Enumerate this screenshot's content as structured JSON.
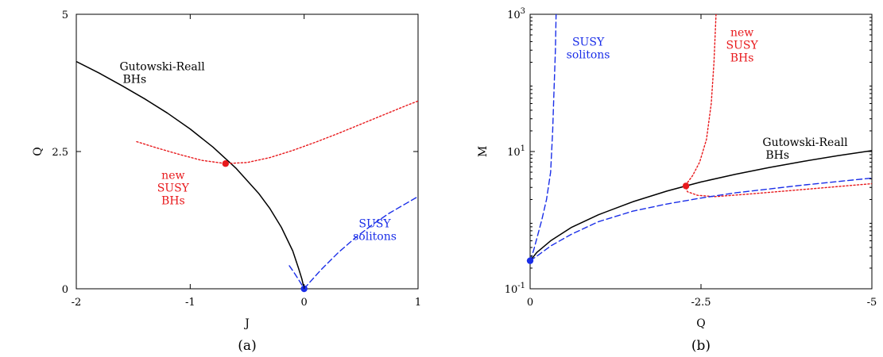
{
  "colors": {
    "black": "#000000",
    "red": "#e8191c",
    "blue": "#1a2ee8"
  },
  "chart_data": [
    {
      "type": "line",
      "caption": "(a)",
      "xlabel": "J",
      "ylabel": "Q",
      "xlim": [
        -2,
        1
      ],
      "ylim": [
        0,
        5
      ],
      "xticks": [
        -2,
        -1,
        0,
        1
      ],
      "xtick_labels": [
        "-2",
        "-1",
        "0",
        "1"
      ],
      "yticks": [
        0,
        2.5,
        5
      ],
      "ytick_labels": [
        "0",
        "2.5",
        "5"
      ],
      "grid": false,
      "series": [
        {
          "id": "gr",
          "color": "#000000",
          "style": "solid",
          "x": [
            -2.0,
            -1.8,
            -1.6,
            -1.4,
            -1.2,
            -1.0,
            -0.8,
            -0.6,
            -0.4,
            -0.3,
            -0.2,
            -0.1,
            -0.05,
            -0.02,
            0.0
          ],
          "y": [
            4.14,
            3.93,
            3.7,
            3.46,
            3.2,
            2.91,
            2.58,
            2.2,
            1.74,
            1.46,
            1.12,
            0.69,
            0.38,
            0.18,
            0.0
          ]
        },
        {
          "id": "new_susy",
          "color": "#e8191c",
          "style": "dotted",
          "x": [
            -1.47,
            -1.3,
            -1.1,
            -0.9,
            -0.69,
            -0.5,
            -0.3,
            -0.1,
            0.1,
            0.3,
            0.5,
            0.7,
            0.9,
            1.0
          ],
          "y": [
            2.68,
            2.57,
            2.45,
            2.34,
            2.28,
            2.3,
            2.39,
            2.52,
            2.67,
            2.83,
            3.0,
            3.17,
            3.34,
            3.42
          ]
        },
        {
          "id": "susy_sol",
          "color": "#1a2ee8",
          "style": "dashed",
          "x": [
            0.0,
            0.05,
            0.15,
            0.3,
            0.45,
            0.6,
            0.75,
            0.9,
            1.0
          ],
          "y": [
            0.0,
            0.12,
            0.35,
            0.66,
            0.93,
            1.17,
            1.38,
            1.56,
            1.68
          ]
        },
        {
          "id": "susy_sol_tail",
          "color": "#1a2ee8",
          "style": "dashed",
          "x": [
            -0.13,
            -0.09,
            -0.05,
            -0.02,
            0.0
          ],
          "y": [
            0.42,
            0.3,
            0.17,
            0.07,
            0.0
          ]
        }
      ],
      "points": [
        {
          "x": -0.69,
          "y": 2.28,
          "color": "#e8191c"
        },
        {
          "x": 0.0,
          "y": 0.0,
          "color": "#1a2ee8"
        }
      ],
      "annotations": [
        {
          "lines": [
            "Gutowski-Reall",
            "BHs"
          ],
          "color": "#000000",
          "x": -1.62,
          "y": 3.98,
          "anchor": "start"
        },
        {
          "lines": [
            "new",
            "SUSY",
            "BHs"
          ],
          "color": "#e8191c",
          "x": -1.15,
          "y": 2.0,
          "anchor": "middle"
        },
        {
          "lines": [
            "SUSY",
            "solitons"
          ],
          "color": "#1a2ee8",
          "x": 0.62,
          "y": 1.12,
          "anchor": "middle"
        }
      ]
    },
    {
      "type": "line",
      "caption": "(b)",
      "xlabel": "Q",
      "ylabel": "M",
      "xlim": [
        0,
        -5
      ],
      "ylim": [
        0.1,
        1000
      ],
      "yscale": "log",
      "xticks": [
        0,
        -2.5,
        -5
      ],
      "xtick_labels": [
        "0",
        "-2.5",
        "-5"
      ],
      "yticks": [
        0.1,
        10,
        1000
      ],
      "ytick_labels": [
        "10",
        "10",
        "10"
      ],
      "ytick_exponents": [
        "-1",
        "1",
        "3"
      ],
      "grid": false,
      "series": [
        {
          "id": "gr",
          "color": "#000000",
          "style": "solid",
          "x": [
            0.0,
            -0.1,
            -0.3,
            -0.6,
            -1.0,
            -1.5,
            -2.0,
            -2.28,
            -2.5,
            -3.0,
            -3.5,
            -4.0,
            -4.5,
            -5.0
          ],
          "y": [
            0.256,
            0.34,
            0.5,
            0.78,
            1.2,
            1.85,
            2.65,
            3.15,
            3.6,
            4.65,
            5.85,
            7.2,
            8.7,
            10.3
          ]
        },
        {
          "id": "new_susy",
          "color": "#e8191c",
          "style": "dotted",
          "x": [
            -2.72,
            -2.69,
            -2.65,
            -2.58,
            -2.48,
            -2.38,
            -2.3,
            -2.28,
            -2.3,
            -2.45,
            -2.7,
            -3.2,
            -4.0,
            -5.0
          ],
          "y": [
            1000,
            200,
            50,
            15,
            7,
            4.5,
            3.5,
            3.15,
            2.6,
            2.3,
            2.2,
            2.4,
            2.8,
            3.4
          ]
        },
        {
          "id": "susy_sol_lower",
          "color": "#1a2ee8",
          "style": "dashed",
          "x": [
            0.0,
            -0.1,
            -0.3,
            -0.6,
            -1.0,
            -1.5,
            -2.0,
            -2.5,
            -3.0,
            -3.5,
            -4.0,
            -4.5,
            -5.0
          ],
          "y": [
            0.256,
            0.3,
            0.42,
            0.62,
            0.95,
            1.35,
            1.72,
            2.1,
            2.5,
            2.85,
            3.25,
            3.65,
            4.1
          ]
        },
        {
          "id": "susy_sol_upper",
          "color": "#1a2ee8",
          "style": "dashed",
          "x": [
            0.0,
            -0.05,
            -0.1,
            -0.17,
            -0.24,
            -0.3,
            -0.33,
            -0.35,
            -0.37,
            -0.38
          ],
          "y": [
            0.256,
            0.36,
            0.55,
            1.0,
            2.0,
            5.0,
            20,
            80,
            300,
            1000
          ]
        }
      ],
      "points": [
        {
          "x": 0.0,
          "y": 0.256,
          "color": "#1a2ee8"
        },
        {
          "x": -2.28,
          "y": 3.15,
          "color": "#e8191c"
        }
      ],
      "annotations": [
        {
          "lines": [
            "SUSY",
            "solitons"
          ],
          "color": "#1a2ee8",
          "x": -0.85,
          "y": 350,
          "anchor": "middle"
        },
        {
          "lines": [
            "new",
            "SUSY",
            "BHs"
          ],
          "color": "#e8191c",
          "x": -3.1,
          "y": 480,
          "anchor": "middle"
        },
        {
          "lines": [
            "Gutowski-Reall",
            "BHs"
          ],
          "color": "#000000",
          "x": -3.4,
          "y": 12,
          "anchor": "start"
        }
      ]
    }
  ]
}
